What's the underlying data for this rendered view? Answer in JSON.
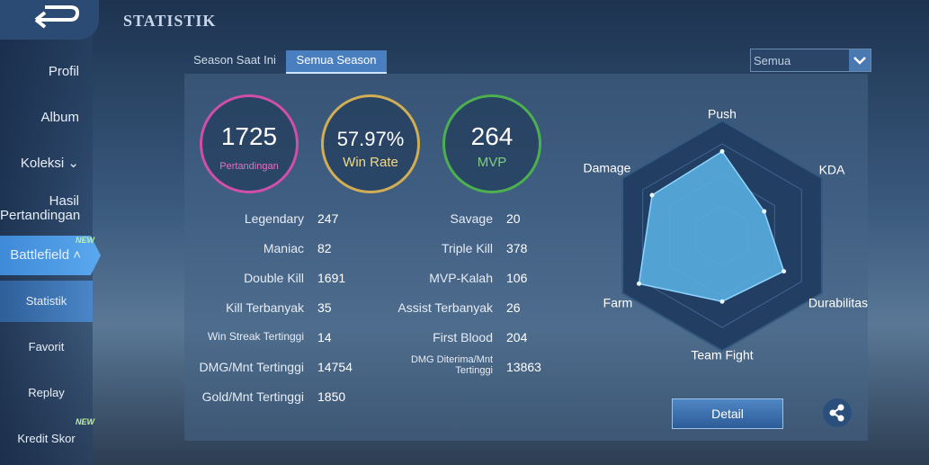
{
  "header": {
    "title": "STATISTIK"
  },
  "sidebar": {
    "items": [
      {
        "label": "Profil"
      },
      {
        "label": "Album"
      },
      {
        "label": "Koleksi"
      },
      {
        "label": "Hasil Pertandingan"
      },
      {
        "label": "Battlefield",
        "badge": "NEW"
      },
      {
        "label": "Statistik"
      },
      {
        "label": "Favorit"
      },
      {
        "label": "Replay"
      },
      {
        "label": "Kredit Skor",
        "badge": "NEW"
      }
    ]
  },
  "tabs": [
    "Season Saat Ini",
    "Semua Season"
  ],
  "dropdown": "Semua",
  "summary": [
    {
      "value": 1725,
      "label": "Pertandingan"
    },
    {
      "value": "57.97%",
      "label": "Win Rate"
    },
    {
      "value": 264,
      "label": "MVP"
    }
  ],
  "stats": {
    "left": [
      [
        "Legendary",
        247
      ],
      [
        "Maniac",
        82
      ],
      [
        "Double Kill",
        1691
      ],
      [
        "Kill Terbanyak",
        35
      ],
      [
        "Win Streak Tertinggi",
        14
      ],
      [
        "DMG/Mnt Tertinggi",
        14754
      ],
      [
        "Gold/Mnt Tertinggi",
        1850
      ]
    ],
    "right": [
      [
        "Savage",
        20
      ],
      [
        "Triple Kill",
        378
      ],
      [
        "MVP-Kalah",
        106
      ],
      [
        "Assist Terbanyak",
        26
      ],
      [
        "First Blood",
        204
      ],
      [
        "DMG Diterima/Mnt Tertinggi",
        13863
      ]
    ]
  },
  "radar": {
    "axes": [
      "Push",
      "KDA",
      "Durabilitas",
      "Team Fight",
      "Farm",
      "Damage"
    ],
    "values": [
      78,
      45,
      66,
      61,
      89,
      75
    ],
    "rlim": [
      0,
      100
    ]
  },
  "detail_button": "Detail"
}
